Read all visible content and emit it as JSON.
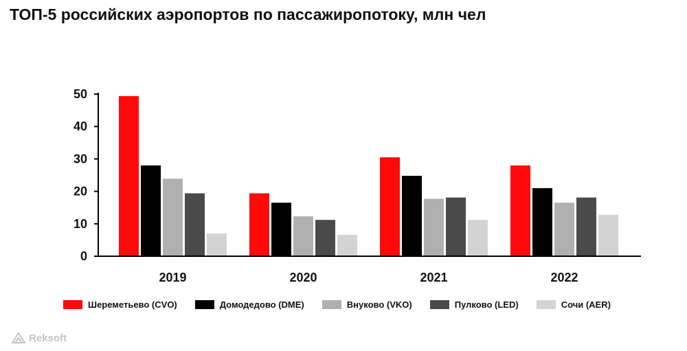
{
  "title": "ТОП-5 российских аэропортов по пассажиропотоку, млн чел",
  "logo_text": "Reksoft",
  "chart_data": {
    "type": "bar",
    "categories": [
      "2019",
      "2020",
      "2021",
      "2022"
    ],
    "ylim": [
      0,
      50
    ],
    "yticks": [
      0,
      10,
      20,
      30,
      40,
      50
    ],
    "grid": false,
    "legend_position": "bottom",
    "series": [
      {
        "name": "Шереметьево (CVO)",
        "color": "#ff0a0a",
        "values": [
          49.4,
          19.4,
          30.5,
          28.0
        ]
      },
      {
        "name": "Домодедово (DME)",
        "color": "#000000",
        "values": [
          28.0,
          16.5,
          24.8,
          21.0
        ]
      },
      {
        "name": "Внуково (VKO)",
        "color": "#b0b0b0",
        "values": [
          23.9,
          12.3,
          17.7,
          16.5
        ]
      },
      {
        "name": "Пулково (LED)",
        "color": "#4a4a4a",
        "values": [
          19.4,
          11.2,
          18.1,
          18.1
        ]
      },
      {
        "name": "Сочи (AER)",
        "color": "#d3d3d3",
        "values": [
          7.0,
          6.6,
          11.2,
          12.8
        ]
      }
    ]
  }
}
